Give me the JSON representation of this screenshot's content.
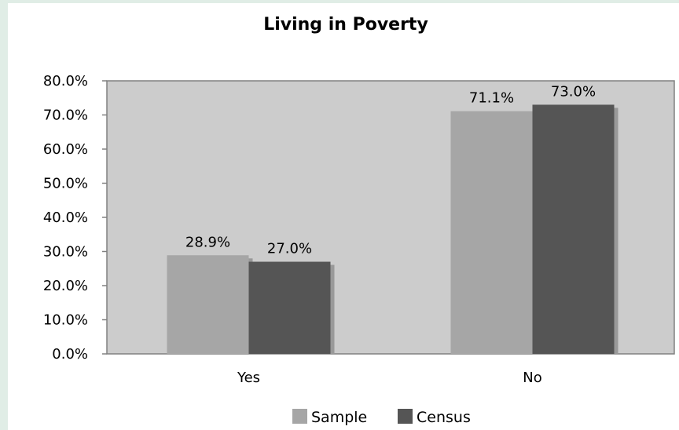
{
  "chart_data": {
    "type": "bar",
    "title": "Living in Poverty",
    "xlabel": "",
    "ylabel": "",
    "categories": [
      "Yes",
      "No"
    ],
    "series": [
      {
        "name": "Sample",
        "values": [
          28.9,
          71.1
        ],
        "labels": [
          "28.9%",
          "71.1%"
        ],
        "color": "#a6a6a6"
      },
      {
        "name": "Census",
        "values": [
          27.0,
          73.0
        ],
        "labels": [
          "27.0%",
          "73.0%"
        ],
        "color": "#555555"
      }
    ],
    "ylim": [
      0,
      80
    ],
    "yticks": [
      "0.0%",
      "10.0%",
      "20.0%",
      "30.0%",
      "40.0%",
      "50.0%",
      "60.0%",
      "70.0%",
      "80.0%"
    ],
    "plot_background": "#cccccc",
    "grid": false,
    "legend_position": "bottom"
  }
}
